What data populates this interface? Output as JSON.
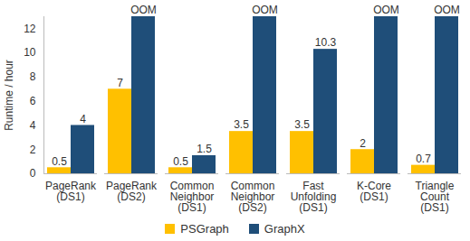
{
  "chart_data": {
    "type": "bar",
    "y_label": "Runtime / hour",
    "categories": [
      "PageRank\n(DS1)",
      "PageRank\n(DS2)",
      "Common\nNeighbor\n(DS1)",
      "Common\nNeighbor\n(DS2)",
      "Fast\nUnfolding\n(DS1)",
      "K-Core\n(DS1)",
      "Triangle\nCount\n(DS1)"
    ],
    "series": [
      {
        "name": "PSGraph",
        "color": "#ffc000",
        "values": [
          0.5,
          7,
          0.5,
          3.5,
          3.5,
          2,
          0.7
        ]
      },
      {
        "name": "GraphX",
        "color": "#1f4e79",
        "values": [
          4,
          null,
          1.5,
          null,
          10.3,
          null,
          null
        ],
        "value_labels": [
          "4",
          "OOM",
          "1.5",
          "OOM",
          "10.3",
          "OOM",
          "OOM"
        ]
      }
    ],
    "ylim": [
      0,
      13
    ],
    "yticks": [
      0,
      2,
      4,
      6,
      8,
      10,
      12
    ],
    "grid": false,
    "data_labels": true,
    "legend": "bottom"
  }
}
